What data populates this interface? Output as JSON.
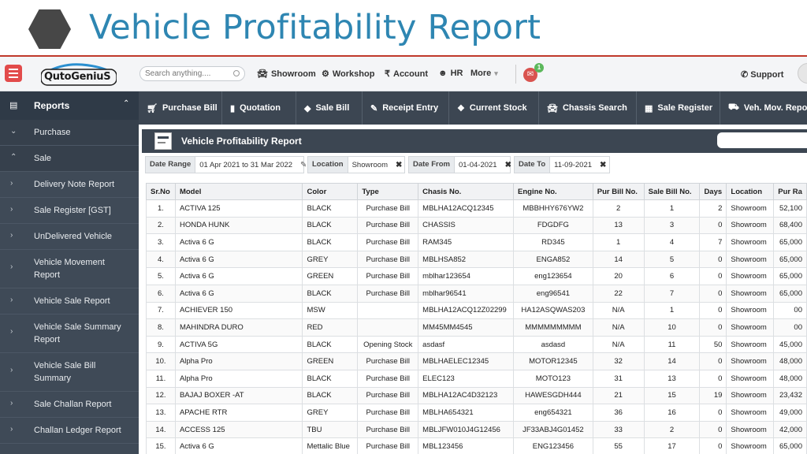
{
  "slide": {
    "title": "Vehicle Profitability Report"
  },
  "topbar": {
    "logo_text": "QutoGeniuS",
    "search_placeholder": "Search anything....",
    "nav": [
      {
        "icon": "car-icon",
        "label": "Showroom"
      },
      {
        "icon": "gears-icon",
        "label": "Workshop"
      },
      {
        "icon": "rupee-icon",
        "label": "Account"
      },
      {
        "icon": "users-icon",
        "label": "HR"
      },
      {
        "icon": "caret-icon",
        "label": "More"
      }
    ],
    "notification_count": "1",
    "support_label": "Support"
  },
  "sidebar": {
    "header": "Reports",
    "items": [
      {
        "label": "Purchase",
        "arrow": "⌄"
      },
      {
        "label": "Sale",
        "arrow": "⌃"
      },
      {
        "label": "Delivery Note Report",
        "arrow": "›"
      },
      {
        "label": "Sale Register [GST]",
        "arrow": "›"
      },
      {
        "label": "UnDelivered Vehicle",
        "arrow": "›"
      },
      {
        "label": "Vehicle Movement Report",
        "arrow": "›"
      },
      {
        "label": "Vehicle Sale Report",
        "arrow": "›"
      },
      {
        "label": "Vehicle Sale Summary Report",
        "arrow": "›"
      },
      {
        "label": "Vehicle Sale Bill Summary",
        "arrow": "›"
      },
      {
        "label": "Sale Challan Report",
        "arrow": "›"
      },
      {
        "label": "Challan Ledger Report",
        "arrow": "›"
      }
    ]
  },
  "toolbar": {
    "buttons": [
      {
        "icon": "cart-icon",
        "label": "Purchase Bill"
      },
      {
        "icon": "file-icon",
        "label": "Quotation"
      },
      {
        "icon": "tag-icon",
        "label": "Sale Bill"
      },
      {
        "icon": "edit-icon",
        "label": "Receipt Entry"
      },
      {
        "icon": "cubes-icon",
        "label": "Current Stock"
      },
      {
        "icon": "car-icon",
        "label": "Chassis Search"
      },
      {
        "icon": "register-icon",
        "label": "Sale Register"
      },
      {
        "icon": "truck-icon",
        "label": "Veh. Mov. Repor"
      }
    ]
  },
  "panel": {
    "title": "Vehicle Profitability Report",
    "filters": {
      "date_range_label": "Date Range",
      "date_range_value": "01 Apr 2021 to 31 Mar 2022",
      "location_label": "Location",
      "location_value": "Showroom",
      "date_from_label": "Date From",
      "date_from_value": "01-04-2021",
      "date_to_label": "Date To",
      "date_to_value": "11-09-2021"
    }
  },
  "table": {
    "columns": [
      "Sr.No",
      "Model",
      "Color",
      "Type",
      "Chasis No.",
      "Engine No.",
      "Pur Bill No.",
      "Sale Bill No.",
      "Days",
      "Location",
      "Pur Ra"
    ],
    "rows": [
      [
        "1.",
        "ACTIVA 125",
        "BLACK",
        "Purchase Bill",
        "MBLHA12ACQ12345",
        "MBBHHY676YW2",
        "2",
        "1",
        "2",
        "Showroom",
        "52,100"
      ],
      [
        "2.",
        "HONDA HUNK",
        "BLACK",
        "Purchase Bill",
        "CHASSIS",
        "FDGDFG",
        "13",
        "3",
        "0",
        "Showroom",
        "68,400"
      ],
      [
        "3.",
        "Activa 6 G",
        "BLACK",
        "Purchase Bill",
        "RAM345",
        "RD345",
        "1",
        "4",
        "7",
        "Showroom",
        "65,000"
      ],
      [
        "4.",
        "Activa 6 G",
        "GREY",
        "Purchase Bill",
        "MBLHSA852",
        "ENGA852",
        "14",
        "5",
        "0",
        "Showroom",
        "65,000"
      ],
      [
        "5.",
        "Activa 6 G",
        "GREEN",
        "Purchase Bill",
        "mblhar123654",
        "eng123654",
        "20",
        "6",
        "0",
        "Showroom",
        "65,000"
      ],
      [
        "6.",
        "Activa 6 G",
        "BLACK",
        "Purchase Bill",
        "mblhar96541",
        "eng96541",
        "22",
        "7",
        "0",
        "Showroom",
        "65,000"
      ],
      [
        "7.",
        "ACHIEVER 150",
        "MSW",
        "",
        "MBLHA12ACQ12Z02299",
        "HA12ASQWAS203",
        "N/A",
        "1",
        "0",
        "Showroom",
        "00"
      ],
      [
        "8.",
        "MAHINDRA DURO",
        "RED",
        "",
        "MM45MM4545",
        "MMMMMMMMM",
        "N/A",
        "10",
        "0",
        "Showroom",
        "00"
      ],
      [
        "9.",
        "ACTIVA 5G",
        "BLACK",
        "Opening Stock",
        "asdasf",
        "asdasd",
        "N/A",
        "11",
        "50",
        "Showroom",
        "45,000"
      ],
      [
        "10.",
        "Alpha Pro",
        "GREEN",
        "Purchase Bill",
        "MBLHAELEC12345",
        "MOTOR12345",
        "32",
        "14",
        "0",
        "Showroom",
        "48,000"
      ],
      [
        "11.",
        "Alpha Pro",
        "BLACK",
        "Purchase Bill",
        "ELEC123",
        "MOTO123",
        "31",
        "13",
        "0",
        "Showroom",
        "48,000"
      ],
      [
        "12.",
        "BAJAJ BOXER -AT",
        "BLACK",
        "Purchase Bill",
        "MBLHA12AC4D32123",
        "HAWESGDH444",
        "21",
        "15",
        "19",
        "Showroom",
        "23,432"
      ],
      [
        "13.",
        "APACHE RTR",
        "GREY",
        "Purchase Bill",
        "MBLHA654321",
        "eng654321",
        "36",
        "16",
        "0",
        "Showroom",
        "49,000"
      ],
      [
        "14.",
        "ACCESS 125",
        "TBU",
        "Purchase Bill",
        "MBLJFW010J4G12456",
        "JF33ABJ4G01452",
        "33",
        "2",
        "0",
        "Showroom",
        "42,000"
      ],
      [
        "15.",
        "Activa 6 G",
        "Mettalic Blue",
        "Purchase Bill",
        "MBL123456",
        "ENG123456",
        "55",
        "17",
        "0",
        "Showroom",
        "65,000"
      ]
    ]
  },
  "colors": {
    "title": "#2e86b2",
    "sidebar": "#3f4a57",
    "toolbar": "#3c4652",
    "accent": "#c0392b"
  }
}
